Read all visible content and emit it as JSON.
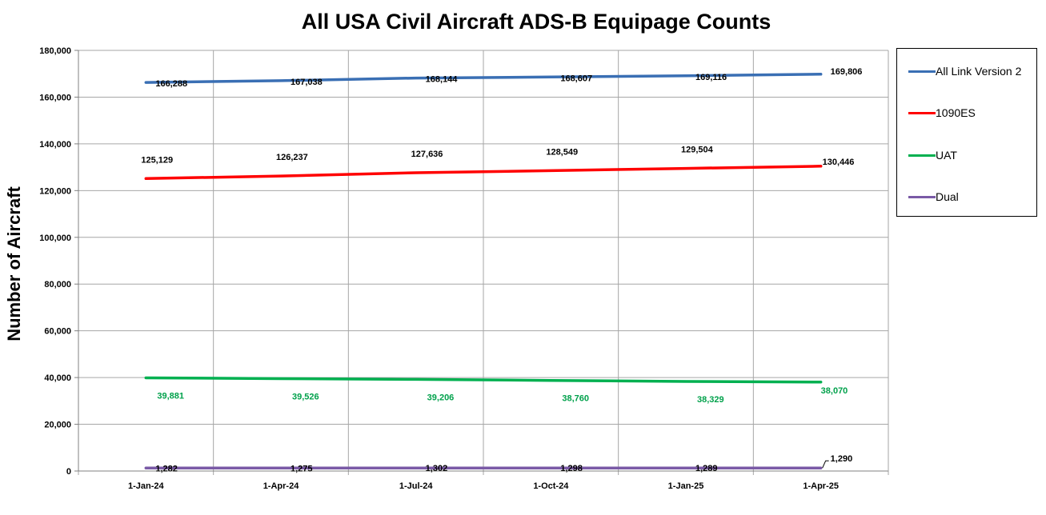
{
  "chart_data": {
    "type": "line",
    "title": "All USA Civil Aircraft ADS-B Equipage Counts",
    "xlabel": "",
    "ylabel": "Number of Aircraft",
    "categories": [
      "1-Jan-24",
      "1-Apr-24",
      "1-Jul-24",
      "1-Oct-24",
      "1-Jan-25",
      "1-Apr-25"
    ],
    "ylim": [
      0,
      180000
    ],
    "yticks": [
      0,
      20000,
      40000,
      60000,
      80000,
      100000,
      120000,
      140000,
      160000,
      180000
    ],
    "ytick_labels": [
      "0",
      "20,000",
      "40,000",
      "60,000",
      "80,000",
      "100,000",
      "120,000",
      "140,000",
      "160,000",
      "180,000"
    ],
    "grid": true,
    "legend": "right",
    "series": [
      {
        "name": "All Link Version 2",
        "color": "#3a6fb4",
        "values": [
          166288,
          167038,
          168144,
          168607,
          169116,
          169806
        ],
        "labels": [
          "166,288",
          "167,038",
          "168,144",
          "168,607",
          "169,116",
          "169,806"
        ],
        "label_color": "#000000"
      },
      {
        "name": "1090ES",
        "color": "#ff0000",
        "values": [
          125129,
          126237,
          127636,
          128549,
          129504,
          130446
        ],
        "labels": [
          "125,129",
          "126,237",
          "127,636",
          "128,549",
          "129,504",
          "130,446"
        ],
        "label_color": "#000000"
      },
      {
        "name": "UAT",
        "color": "#00b050",
        "values": [
          39881,
          39526,
          39206,
          38760,
          38329,
          38070
        ],
        "labels": [
          "39,881",
          "39,526",
          "39,206",
          "38,760",
          "38,329",
          "38,070"
        ],
        "label_color": "#00a14b"
      },
      {
        "name": "Dual",
        "color": "#7a5aa6",
        "values": [
          1282,
          1275,
          1302,
          1298,
          1289,
          1290
        ],
        "labels": [
          "1,282",
          "1,275",
          "1,302",
          "1,298",
          "1,289",
          "1,290"
        ],
        "label_color": "#000000"
      }
    ]
  }
}
